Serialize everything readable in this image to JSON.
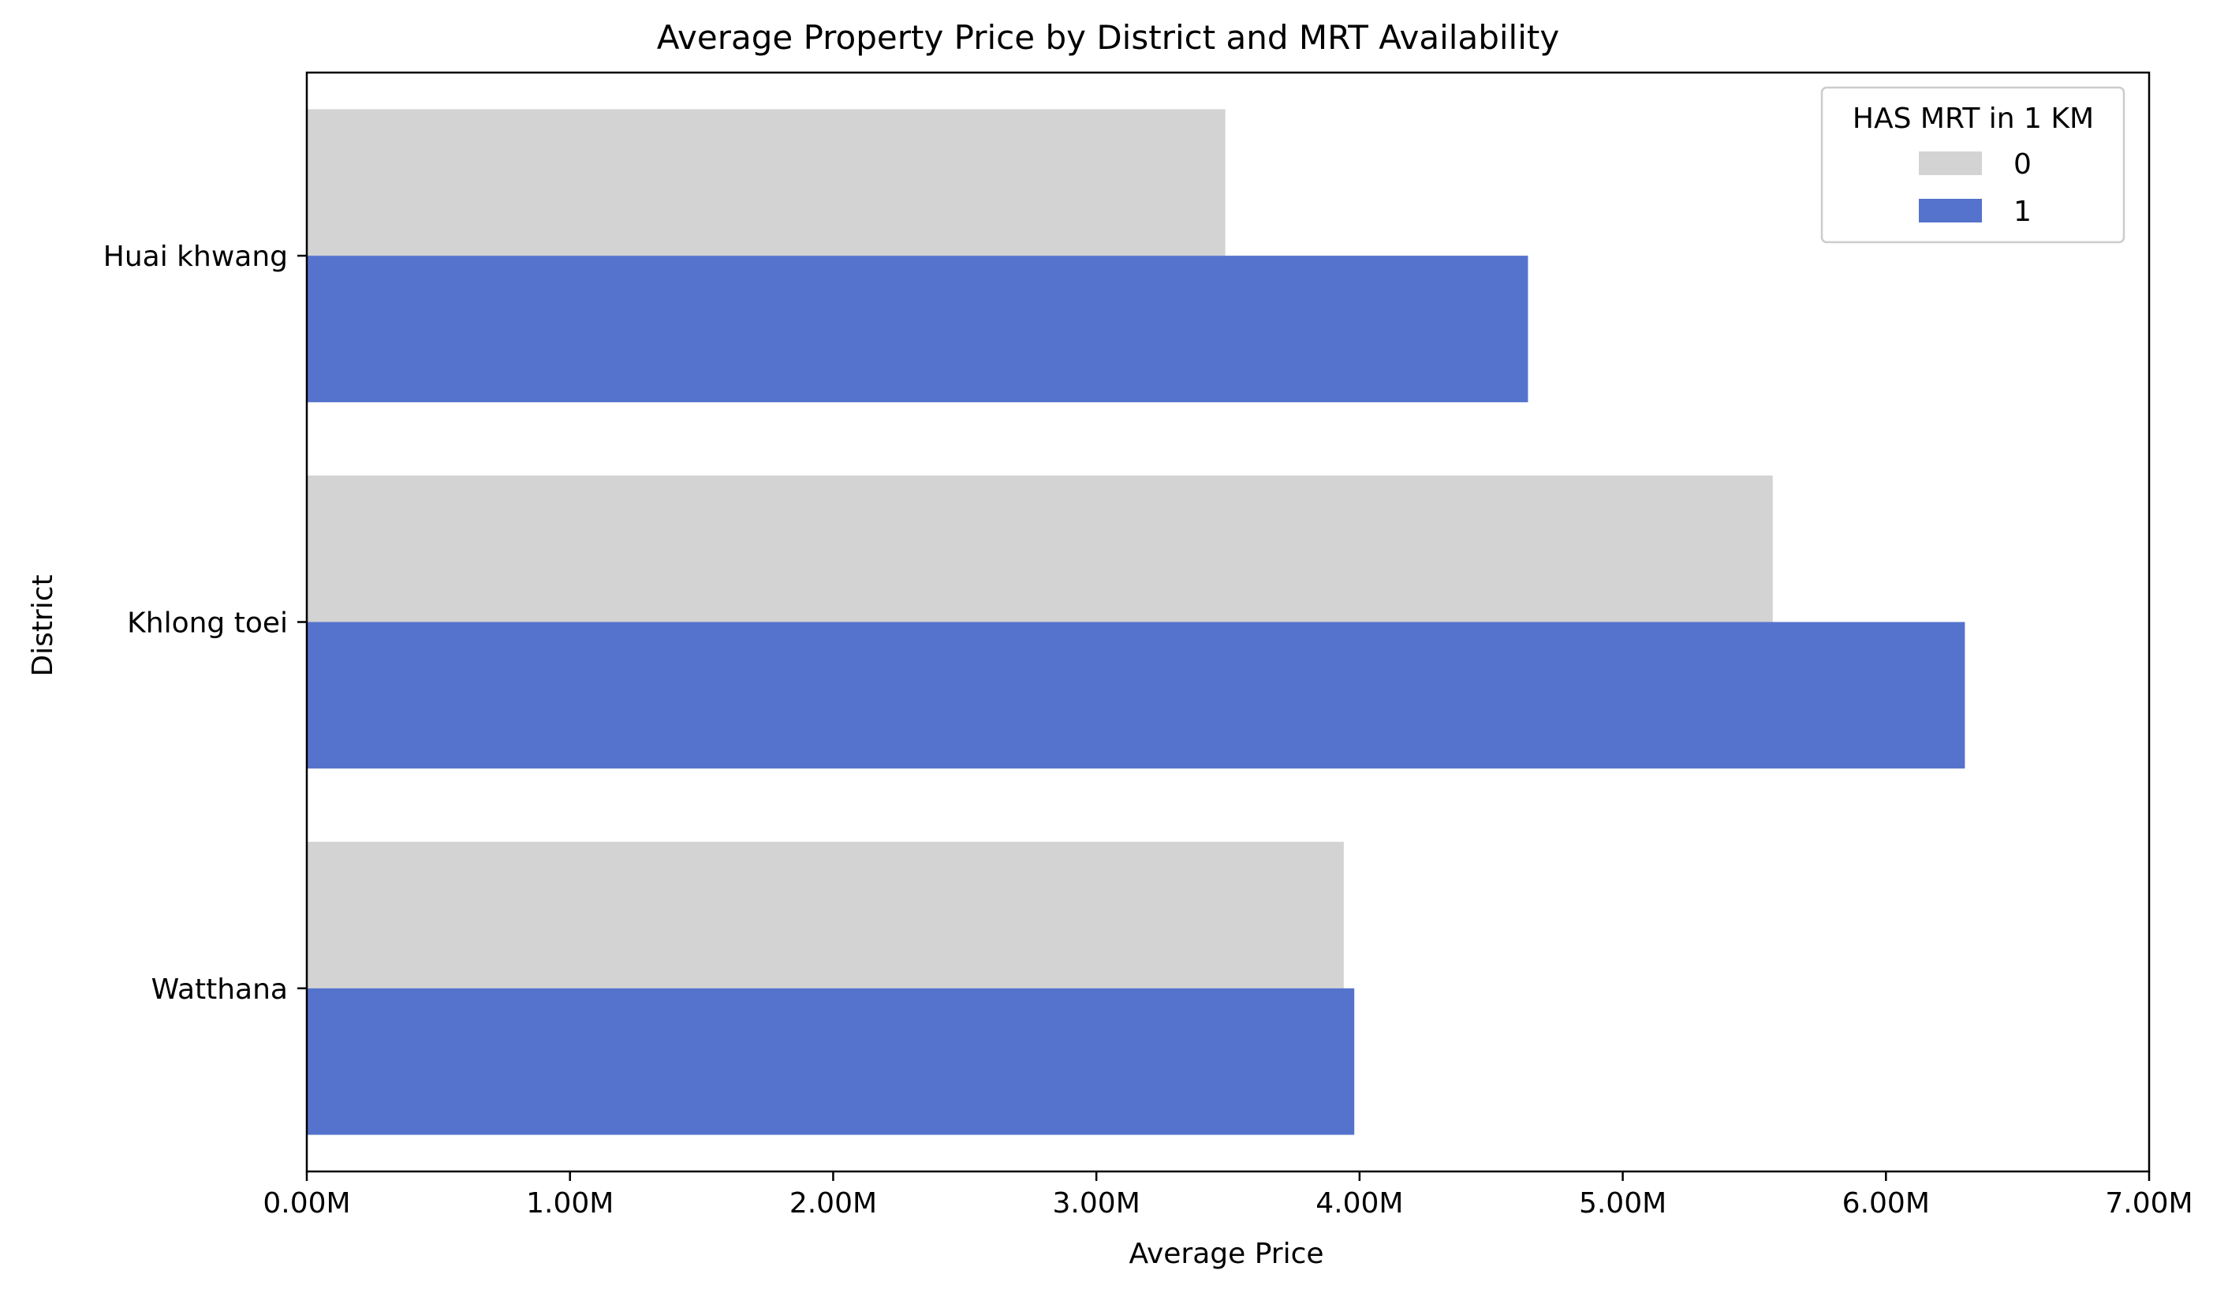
{
  "chart_data": {
    "type": "bar",
    "orientation": "horizontal",
    "title": "Average Property Price by District and MRT Availability",
    "xlabel": "Average Price",
    "ylabel": "District",
    "categories": [
      "Huai khwang",
      "Khlong toei",
      "Watthana"
    ],
    "series": [
      {
        "name": "0",
        "color": "#d3d3d3",
        "values": [
          3490000,
          5570000,
          3940000
        ]
      },
      {
        "name": "1",
        "color": "#5573cc",
        "values": [
          4640000,
          6300000,
          3980000
        ]
      }
    ],
    "xlim": [
      0,
      7000000
    ],
    "xticks": [
      0,
      1000000,
      2000000,
      3000000,
      4000000,
      5000000,
      6000000,
      7000000
    ],
    "xtick_labels": [
      "0.00M",
      "1.00M",
      "2.00M",
      "3.00M",
      "4.00M",
      "5.00M",
      "6.00M",
      "7.00M"
    ],
    "grid": false,
    "legend": {
      "title": "HAS MRT in 1 KM",
      "position": "top-right"
    }
  }
}
